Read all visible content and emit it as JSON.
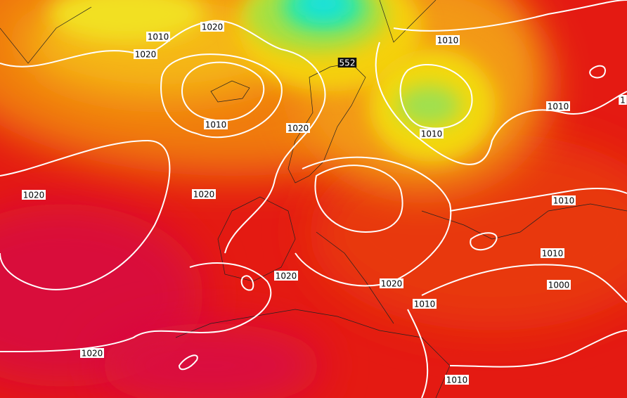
{
  "labels": [
    {
      "text": "1010"
    },
    {
      "text": "1020"
    },
    {
      "text": "1020"
    },
    {
      "text": "1010"
    },
    {
      "text": "552"
    },
    {
      "text": "1010"
    },
    {
      "text": "1010"
    },
    {
      "text": "1020"
    },
    {
      "text": "1010"
    },
    {
      "text": "1020"
    },
    {
      "text": "1020"
    },
    {
      "text": "1010"
    },
    {
      "text": "1010"
    },
    {
      "text": "1020"
    },
    {
      "text": "1020"
    },
    {
      "text": "1000"
    },
    {
      "text": "1010"
    },
    {
      "text": "1020"
    },
    {
      "text": "1010"
    },
    {
      "text": "1"
    }
  ]
}
